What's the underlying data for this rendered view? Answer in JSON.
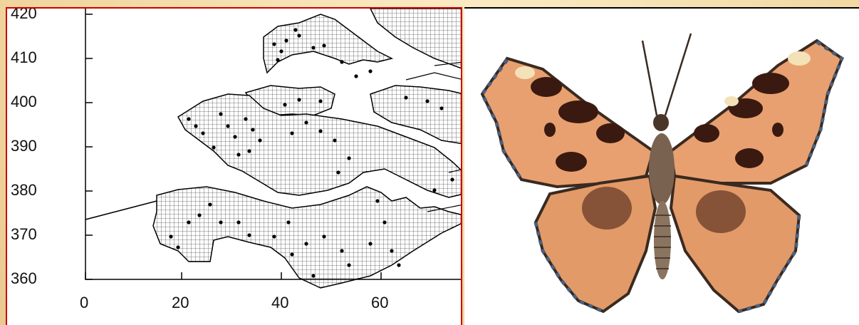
{
  "map": {
    "y_ticks": [
      "420",
      "410",
      "400",
      "390",
      "380",
      "370",
      "360"
    ],
    "x_ticks": [
      "0",
      "20",
      "40",
      "60"
    ],
    "land_pattern": "grid-hatch",
    "points_color": "#000000",
    "frame_color": "#cc0000"
  },
  "illustration": {
    "subject": "butterfly",
    "wing_color": "#e8a070",
    "spot_color": "#3a1a10",
    "edge_color": "#4a6080"
  }
}
